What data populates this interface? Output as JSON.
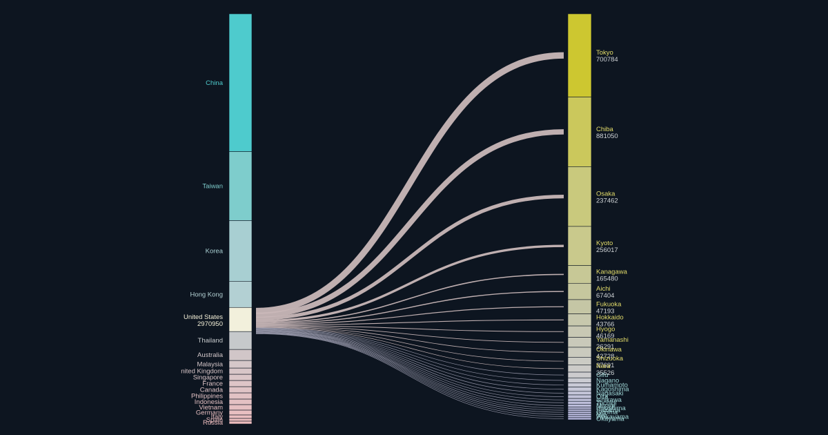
{
  "chart_data": {
    "type": "sankey",
    "highlight": {
      "source": "United States",
      "value": "2970950"
    },
    "sources": [
      {
        "label": "China",
        "color": "#4ecbcd",
        "weight": 200
      },
      {
        "label": "Taiwan",
        "color": "#7ecdcc",
        "weight": 100
      },
      {
        "label": "Korea",
        "color": "#a8cfd2",
        "weight": 88
      },
      {
        "label": "Hong Kong",
        "color": "#b3d0d3",
        "weight": 38
      },
      {
        "label": "United States",
        "color": "#f2f0dc",
        "weight": 35
      },
      {
        "label": "Thailand",
        "color": "#c6c9cb",
        "weight": 26
      },
      {
        "label": "Australia",
        "color": "#d1c6c8",
        "weight": 16
      },
      {
        "label": "Malaysia",
        "color": "#d5c7c9",
        "weight": 11
      },
      {
        "label": "nited Kingdom",
        "color": "#d8c6c8",
        "weight": 9
      },
      {
        "label": "Singapore",
        "color": "#dbc6c8",
        "weight": 9
      },
      {
        "label": "France",
        "color": "#dec5c7",
        "weight": 9
      },
      {
        "label": "Canada",
        "color": "#e0c4c6",
        "weight": 9
      },
      {
        "label": "Philippines",
        "color": "#e2c2c4",
        "weight": 9
      },
      {
        "label": "Indonesia",
        "color": "#e4c1c3",
        "weight": 8
      },
      {
        "label": "Vietnam",
        "color": "#e6c0c2",
        "weight": 8
      },
      {
        "label": "Germany",
        "color": "#e8bfc1",
        "weight": 7
      },
      {
        "label": "Italy",
        "color": "#eabec0",
        "weight": 5
      },
      {
        "label": "Spain",
        "color": "#ebbdbf",
        "weight": 4
      },
      {
        "label": "Russia",
        "color": "#ecbcbe",
        "weight": 4
      }
    ],
    "targets": [
      {
        "label": "Tokyo",
        "value": "700784",
        "color": "#cdc730",
        "weight": 117
      },
      {
        "label": "Chiba",
        "value": "881050",
        "color": "#cbc85c",
        "weight": 98
      },
      {
        "label": "Osaka",
        "value": "237462",
        "color": "#c9c97d",
        "weight": 84
      },
      {
        "label": "Kyoto",
        "value": "256017",
        "color": "#c9c98c",
        "weight": 55
      },
      {
        "label": "Kanagawa",
        "value": "165480",
        "color": "#c7c896",
        "weight": 25
      },
      {
        "label": "Aichi",
        "value": "67404",
        "color": "#c6c79e",
        "weight": 23
      },
      {
        "label": "Fukuoka",
        "value": "47193",
        "color": "#c5c6a5",
        "weight": 20
      },
      {
        "label": "Hokkaido",
        "value": "43766",
        "color": "#c7c8ad",
        "weight": 17
      },
      {
        "label": "Hyogo",
        "value": "46169",
        "color": "#c8c8b4",
        "weight": 16
      },
      {
        "label": "Yamanashi",
        "value": "26291",
        "color": "#c9c9ba",
        "weight": 14
      },
      {
        "label": "Okinawa",
        "value": "42728",
        "color": "#cacabe",
        "weight": 14
      },
      {
        "label": "Shizuoka",
        "value": "37691",
        "color": "#cbcbc4",
        "weight": 11
      },
      {
        "label": "Nara",
        "value": "35526",
        "color": "#cccbc8",
        "weight": 10
      },
      {
        "label": "Gifu",
        "value": "",
        "color": "#cccbcd",
        "weight": 8
      },
      {
        "label": "Nagano",
        "value": "",
        "color": "#cacbd2",
        "weight": 7
      },
      {
        "label": "Kumamoto",
        "value": "",
        "color": "#c8c9d5",
        "weight": 6
      },
      {
        "label": "Kagoshima",
        "value": "",
        "color": "#c6c7d7",
        "weight": 6
      },
      {
        "label": "Nagasaki",
        "value": "",
        "color": "#c4c5d8",
        "weight": 5
      },
      {
        "label": "Oita",
        "value": "",
        "color": "#c2c3d9",
        "weight": 5
      },
      {
        "label": "Ishikawa",
        "value": "",
        "color": "#c0c1da",
        "weight": 4
      },
      {
        "label": "Tochigi",
        "value": "",
        "color": "#bebfdb",
        "weight": 4
      },
      {
        "label": "Miyagi",
        "value": "",
        "color": "#bcbddb",
        "weight": 4
      },
      {
        "label": "Hiroshima",
        "value": "",
        "color": "#babbdb",
        "weight": 3
      },
      {
        "label": "Saitama",
        "value": "",
        "color": "#b8b9da",
        "weight": 3
      },
      {
        "label": "Gunma",
        "value": "",
        "color": "#b6b7d9",
        "weight": 3
      },
      {
        "label": "Mie",
        "value": "",
        "color": "#b4b5d8",
        "weight": 3
      },
      {
        "label": "Wakayama",
        "value": "",
        "color": "#b2b3d7",
        "weight": 3
      },
      {
        "label": "Okayama",
        "value": "",
        "color": "#b0b1d6",
        "weight": 3
      }
    ]
  }
}
